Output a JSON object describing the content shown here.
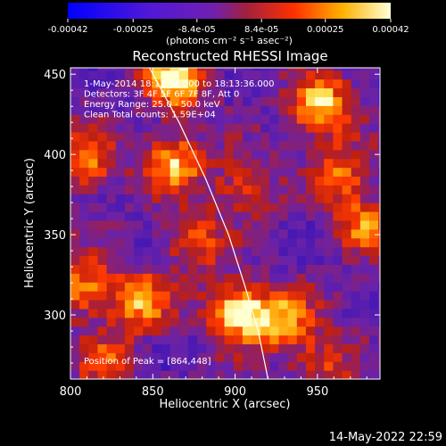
{
  "chart_data": {
    "type": "heatmap",
    "title": "Reconstructed RHESSI Image",
    "xlabel": "Heliocentric X (arcsec)",
    "ylabel": "Heliocentric Y (arcsec)",
    "xlim": [
      800,
      988
    ],
    "ylim": [
      260,
      454
    ],
    "x_ticks": [
      "800",
      "850",
      "900",
      "950"
    ],
    "y_ticks": [
      "300",
      "350",
      "400",
      "450"
    ],
    "colorbar": {
      "range": [
        -0.00042,
        0.00042
      ],
      "tick_labels": [
        "-0.00042",
        "-0.00025",
        "-8.4e-05",
        "8.4e-05",
        "0.00025",
        "0.00042"
      ],
      "unit_label": "(photons cm⁻² s⁻¹ asec⁻²)"
    },
    "info_lines": [
      "1-May-2014 18:13:36.000 to 18:13:36.000",
      "Detectors: 3F 4F 5F 6F 7F 8F, Att 0",
      "Energy Range: 25.0 - 50.0 keV",
      "Clean     Total counts: 1.59E+04"
    ],
    "peak_label": "Position of Peak = [864,448]",
    "limb_line": [
      [
        848,
        454
      ],
      [
        866,
        420
      ],
      [
        882,
        385
      ],
      [
        896,
        350
      ],
      [
        906,
        318
      ],
      [
        914,
        290
      ],
      [
        920,
        260
      ]
    ],
    "hot_sources": [
      {
        "x": 864,
        "y": 448,
        "value": 0.00042
      },
      {
        "x": 902,
        "y": 302,
        "value": 0.0004
      },
      {
        "x": 952,
        "y": 430,
        "value": 0.00036
      },
      {
        "x": 862,
        "y": 395,
        "value": 0.0003
      },
      {
        "x": 842,
        "y": 308,
        "value": 0.00028
      },
      {
        "x": 930,
        "y": 297,
        "value": 0.00028
      },
      {
        "x": 807,
        "y": 318,
        "value": 0.00024
      },
      {
        "x": 810,
        "y": 395,
        "value": 0.00022
      },
      {
        "x": 978,
        "y": 355,
        "value": 0.00022
      },
      {
        "x": 965,
        "y": 390,
        "value": 0.00018
      },
      {
        "x": 905,
        "y": 380,
        "value": 0.00016
      },
      {
        "x": 875,
        "y": 345,
        "value": 0.00016
      },
      {
        "x": 820,
        "y": 270,
        "value": 0.00014
      },
      {
        "x": 955,
        "y": 270,
        "value": 0.00014
      }
    ]
  },
  "footer": {
    "timestamp": "14-May-2022 22:59"
  }
}
